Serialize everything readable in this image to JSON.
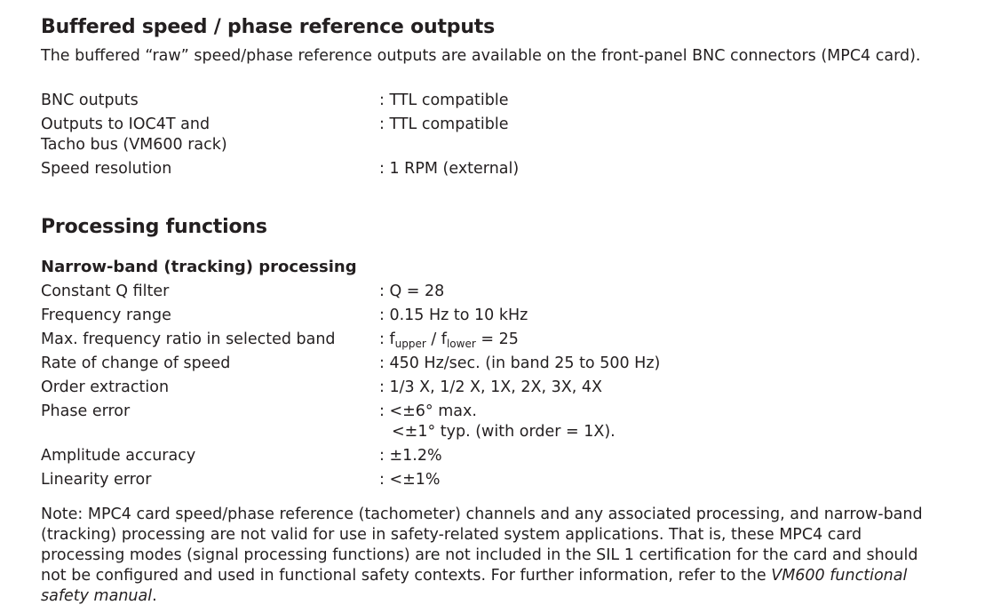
{
  "section1": {
    "title": "Buffered speed / phase reference outputs",
    "intro": "The buffered “raw” speed/phase reference outputs are available on the front-panel BNC connectors (MPC4 card).",
    "rows": [
      {
        "label": "BNC outputs",
        "value": ": TTL compatible"
      },
      {
        "label": "Outputs to IOC4T and",
        "label2": "Tacho bus (VM600 rack)",
        "value": ": TTL compatible"
      },
      {
        "label": "Speed resolution",
        "value": ": 1 RPM (external)"
      }
    ]
  },
  "section2": {
    "title": "Processing functions",
    "subtitle": "Narrow-band (tracking) processing",
    "rows": [
      {
        "label": "Constant Q filter",
        "value": ": Q = 28"
      },
      {
        "label": "Frequency range",
        "value": ": 0.15 Hz to 10 kHz"
      },
      {
        "label": "Max. frequency ratio in selected band",
        "v_pre": ": f",
        "v_sub1": "upper",
        "v_mid": " / f",
        "v_sub2": "lower",
        "v_post": " = 25"
      },
      {
        "label": "Rate of change of speed",
        "value": ": 450 Hz/sec. (in band 25 to 500 Hz)"
      },
      {
        "label": "Order extraction",
        "value": ": 1/3 X, 1/2 X, 1X, 2X, 3X, 4X"
      },
      {
        "label": "Phase error",
        "value": ": <±6° max.",
        "value2": "<±1° typ. (with order = 1X)."
      },
      {
        "label": "Amplitude accuracy",
        "value": ": ±1.2%"
      },
      {
        "label": "Linearity error",
        "value": ": <±1%"
      }
    ],
    "note": "Note: MPC4 card speed/phase reference (tachometer) channels and any associated processing, and narrow-band (tracking) processing are not valid for use in safety-related system applications. That is, these MPC4 card processing modes (signal processing functions) are not included in the SIL 1 certification for the card and should not be configured and used in functional safety contexts. For further information, refer to the ",
    "note_ref": "VM600 functional safety manual",
    "note_end": "."
  }
}
